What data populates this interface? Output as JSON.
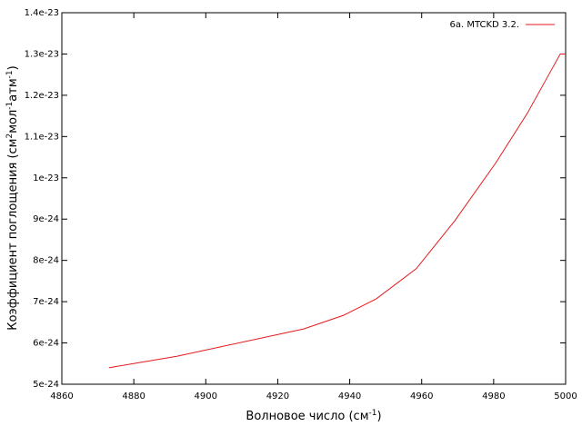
{
  "chart_data": {
    "type": "line",
    "xlabel": [
      "Волновое число (см",
      "-1",
      ")"
    ],
    "ylabel": [
      "Коэффициент поглощения (см",
      "2",
      "мол",
      "-1",
      "атм",
      "-1",
      ")"
    ],
    "xlim": [
      4860,
      5000
    ],
    "xticks": [
      4860,
      4880,
      4900,
      4920,
      4940,
      4960,
      4980,
      5000
    ],
    "ylim": [
      5e-24,
      1.4e-23
    ],
    "yticks": [
      {
        "value": 5e-24,
        "label": "5e-24"
      },
      {
        "value": 6e-24,
        "label": "6e-24"
      },
      {
        "value": 7e-24,
        "label": "7e-24"
      },
      {
        "value": 8e-24,
        "label": "8e-24"
      },
      {
        "value": 9e-24,
        "label": "9e-24"
      },
      {
        "value": 1e-23,
        "label": "1e-23"
      },
      {
        "value": 1.1e-23,
        "label": "1.1e-23"
      },
      {
        "value": 1.2e-23,
        "label": "1.2e-23"
      },
      {
        "value": 1.3e-23,
        "label": "1.3e-23"
      },
      {
        "value": 1.4e-23,
        "label": "1.4e-23"
      }
    ],
    "grid": false,
    "legend": "upper right",
    "series": [
      {
        "name": "6a. MTCKD 3.2.",
        "color": "#e41a1c",
        "x": [
          4873.1,
          4892.1,
          4927.2,
          4938.3,
          4947.4,
          4958.5,
          4969.2,
          4980.5,
          4989.4,
          4998.5,
          5000
        ],
        "values": [
          5.4e-24,
          5.68e-24,
          6.34e-24,
          6.67e-24,
          7.07e-24,
          7.8e-24,
          8.96e-24,
          1.035e-23,
          1.157e-23,
          1.3e-23,
          1.3e-23
        ]
      }
    ]
  }
}
